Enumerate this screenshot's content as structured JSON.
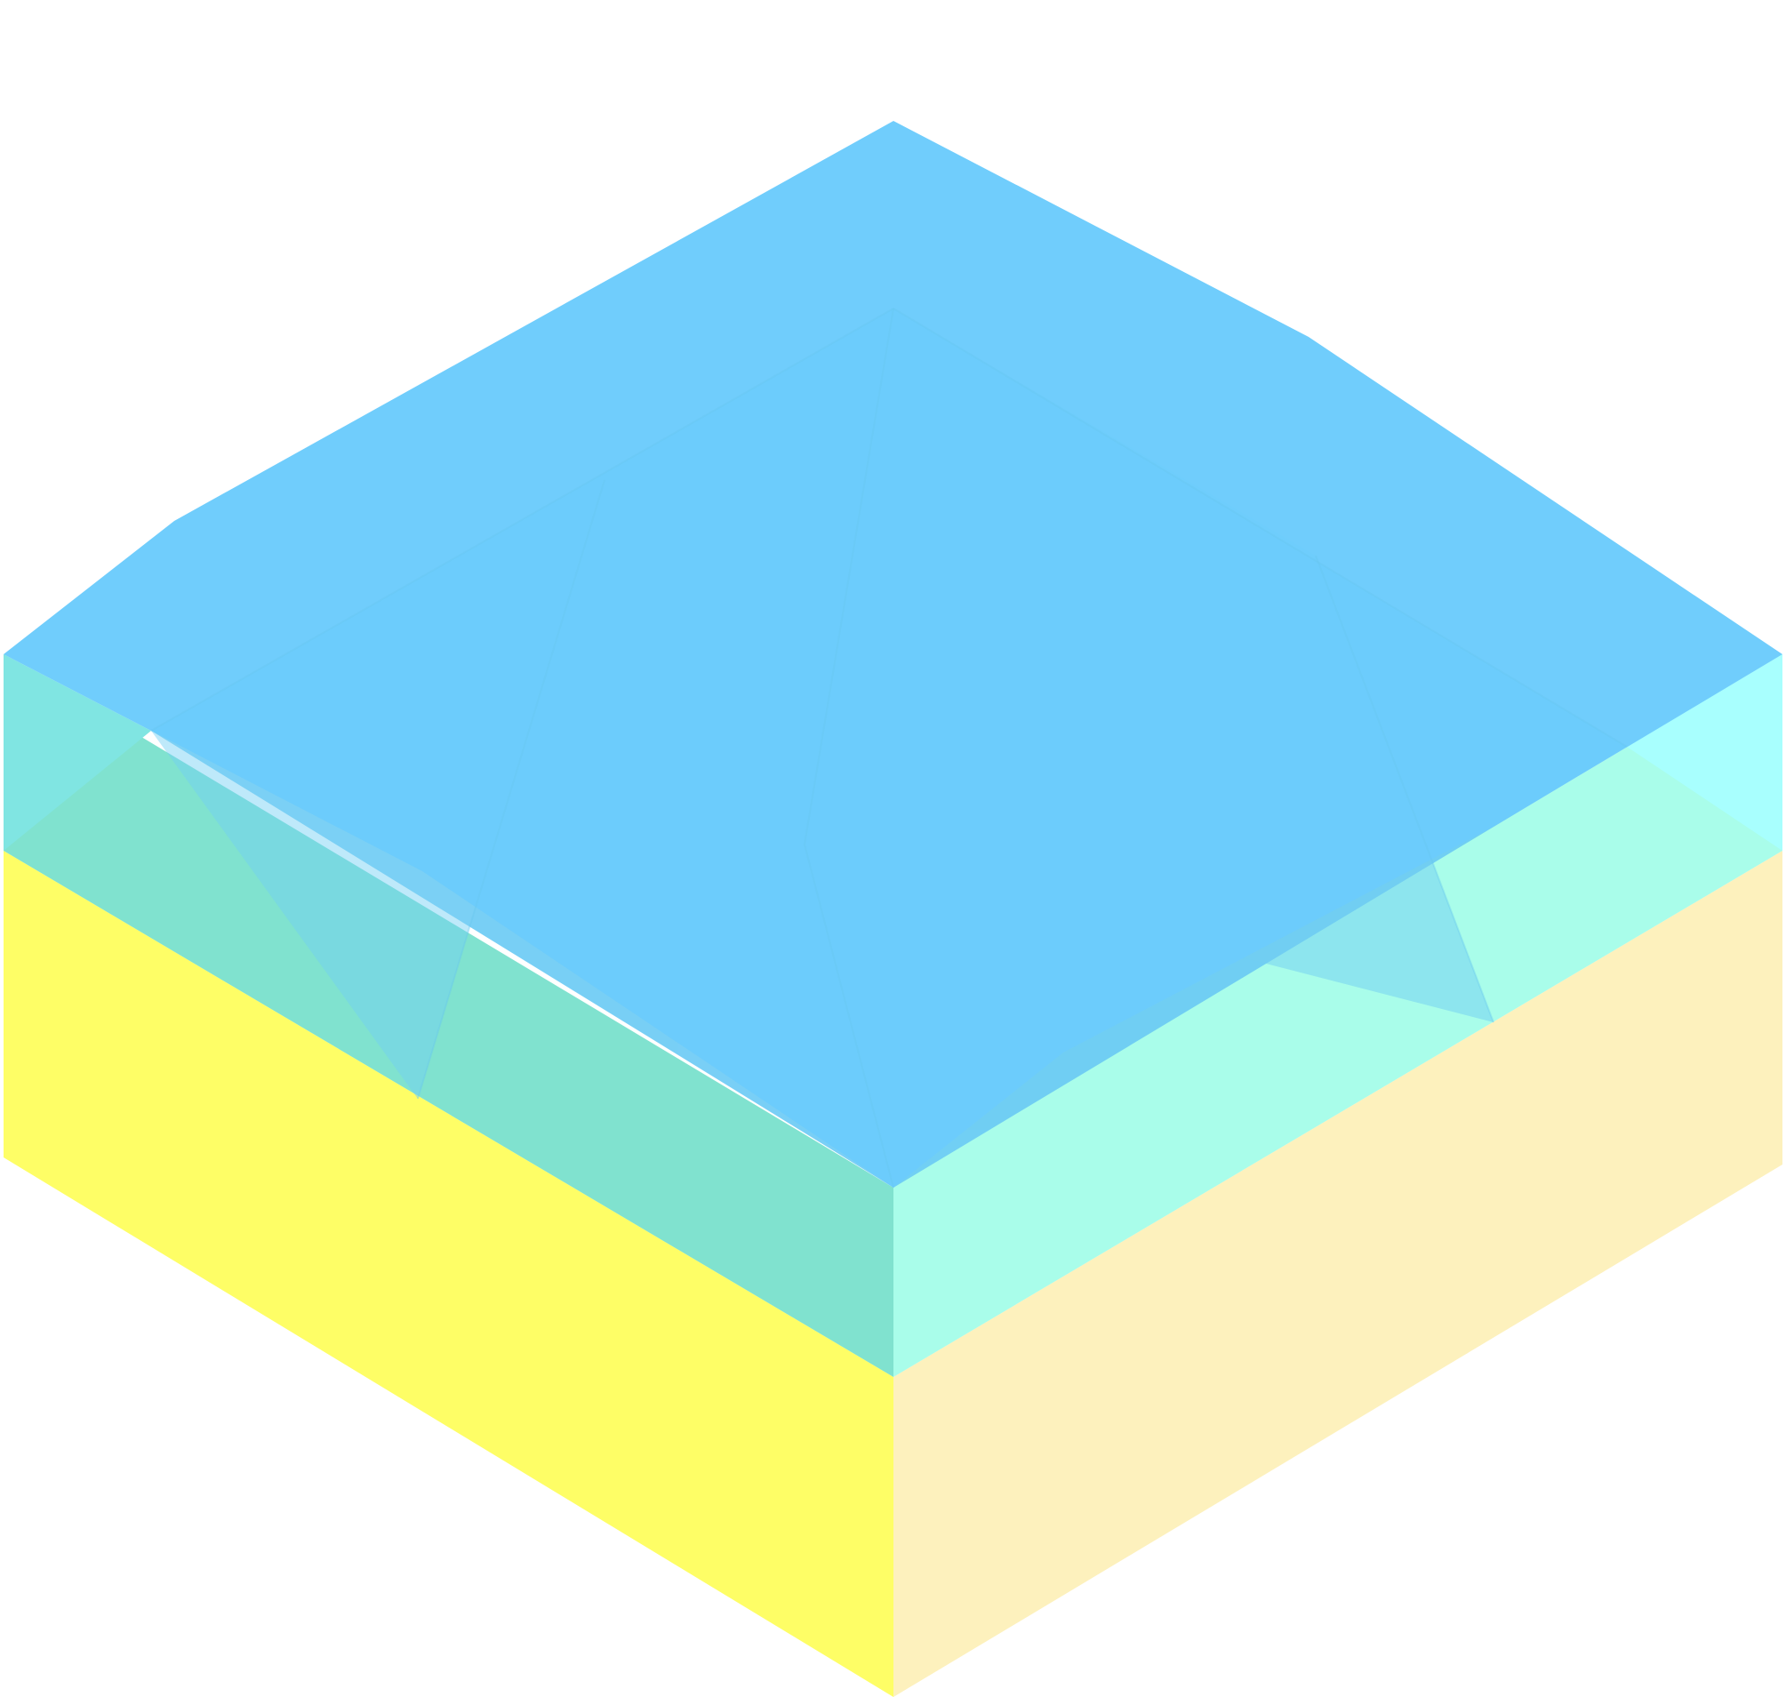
{
  "diagram": {
    "kind": "isometric layered block (two stacked layers)",
    "colors": {
      "background": "#ffffff",
      "lower_layer_left_face": "#FEFE66",
      "lower_layer_right_face": "#FDF1BD",
      "upper_layer_left_face": "#80E2CF",
      "upper_layer_right_face": "#A9FDEA",
      "upper_layer_left_face_top_band": "#80E5E2",
      "upper_layer_right_face_top_band": "#A8FFFE",
      "top_surface": "#6BCBFC",
      "interior_facets": [
        "#6ACAF5",
        "#6FCEF4",
        "#6BC8F1",
        "#76D7E9"
      ]
    }
  }
}
